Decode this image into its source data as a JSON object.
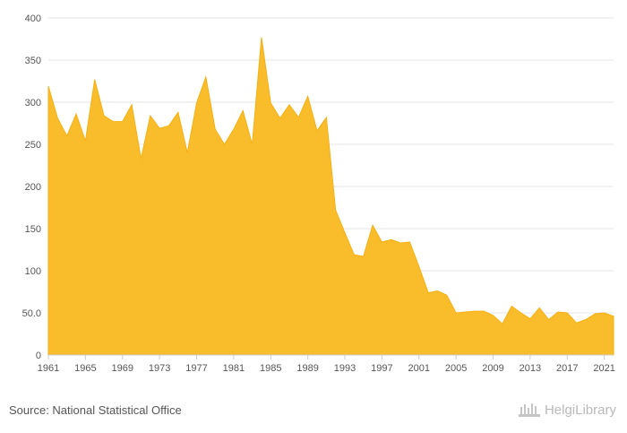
{
  "chart_data": {
    "type": "area",
    "x": [
      1961,
      1962,
      1963,
      1964,
      1965,
      1966,
      1967,
      1968,
      1969,
      1970,
      1971,
      1972,
      1973,
      1974,
      1975,
      1976,
      1977,
      1978,
      1979,
      1980,
      1981,
      1982,
      1983,
      1984,
      1985,
      1986,
      1987,
      1988,
      1989,
      1990,
      1991,
      1992,
      1993,
      1994,
      1995,
      1996,
      1997,
      1998,
      1999,
      2000,
      2001,
      2002,
      2003,
      2004,
      2005,
      2006,
      2007,
      2008,
      2009,
      2010,
      2011,
      2012,
      2013,
      2014,
      2015,
      2016,
      2017,
      2018,
      2019,
      2020,
      2021,
      2022
    ],
    "values": [
      319,
      281,
      260,
      286,
      254,
      327,
      284,
      277,
      277,
      297,
      233,
      284,
      269,
      272,
      288,
      240,
      299,
      330,
      268,
      250,
      268,
      290,
      250,
      377,
      299,
      281,
      297,
      282,
      307,
      266,
      282,
      172,
      145,
      119,
      117,
      154,
      134,
      137,
      133,
      134,
      105,
      74,
      76,
      71,
      50,
      51,
      52,
      52,
      47,
      37,
      58,
      50,
      43,
      56,
      42,
      51,
      50,
      38,
      42,
      49,
      50,
      46
    ],
    "title": "",
    "xlabel": "",
    "ylabel": "",
    "xlim": [
      1961,
      2022
    ],
    "ylim": [
      0,
      400
    ],
    "x_ticks": [
      "1961",
      "1965",
      "1969",
      "1973",
      "1977",
      "1981",
      "1985",
      "1989",
      "1993",
      "1997",
      "2001",
      "2005",
      "2009",
      "2013",
      "2017",
      "2021"
    ],
    "y_ticks": [
      "0",
      "50.0",
      "100",
      "150",
      "200",
      "250",
      "300",
      "350",
      "400"
    ],
    "grid": true,
    "legend": "none",
    "fill_color": "#f9bd2c",
    "stroke_color": "#f5b014"
  },
  "footer": {
    "source": "Source: National Statistical Office",
    "brand": "HelgiLibrary"
  }
}
